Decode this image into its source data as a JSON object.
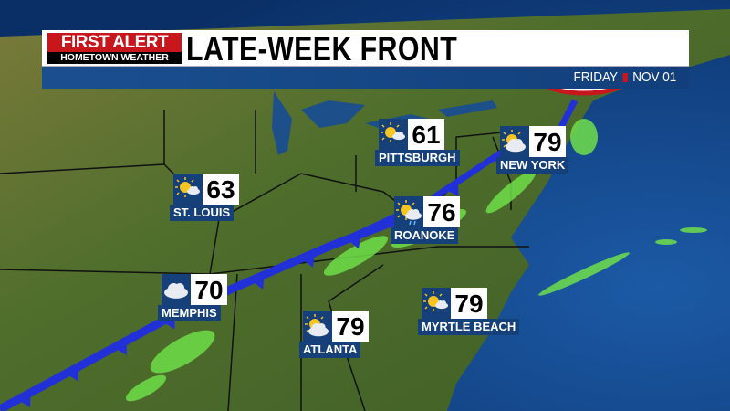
{
  "header": {
    "logo_top": "FIRST ALERT",
    "logo_bottom": "HOMETOWN WEATHER",
    "title": "LATE-WEEK FRONT",
    "day": "FRIDAY",
    "date": "NOV 01"
  },
  "colors": {
    "brand_red": "#c8161d",
    "banner_blue": "#15407a",
    "front_blue": "#2230d8",
    "radar_green": "#6fe04a",
    "land": "#4f6e2c",
    "ocean": "#0d3d7a"
  },
  "front": {
    "type": "cold-front"
  },
  "cities": [
    {
      "name": "ST. LOUIS",
      "temp": "63",
      "icon": "mostly-sunny-icon"
    },
    {
      "name": "MEMPHIS",
      "temp": "70",
      "icon": "cloudy-icon"
    },
    {
      "name": "ATLANTA",
      "temp": "79",
      "icon": "partly-cloudy-icon"
    },
    {
      "name": "MYRTLE BEACH",
      "temp": "79",
      "icon": "partly-sunny-icon"
    },
    {
      "name": "ROANOKE",
      "temp": "76",
      "icon": "sun-showers-icon"
    },
    {
      "name": "PITTSBURGH",
      "temp": "61",
      "icon": "partly-sunny-icon"
    },
    {
      "name": "NEW YORK",
      "temp": "79",
      "icon": "partly-cloudy-icon"
    }
  ]
}
